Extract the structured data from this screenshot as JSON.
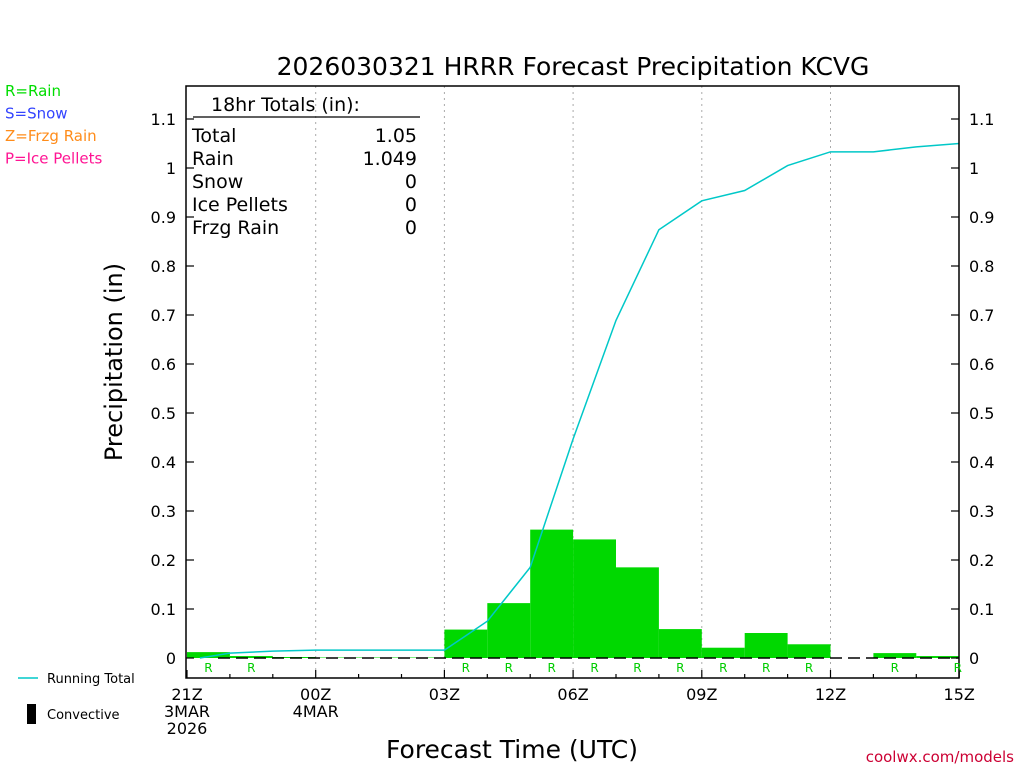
{
  "chart_data": {
    "type": "bar",
    "title": "2026030321 HRRR Forecast Precipitation KCVG",
    "xlabel": "Forecast Time (UTC)",
    "ylabel": "Precipitation (in)",
    "ylim": [
      0,
      1.15
    ],
    "yticks": [
      "0",
      "0.1",
      "0.2",
      "0.3",
      "0.4",
      "0.5",
      "0.6",
      "0.7",
      "0.8",
      "0.9",
      "1",
      "1.1"
    ],
    "x_start": "21Z 3MAR 2026",
    "x_end": "15Z 4MAR 2026",
    "x_unit": "hour (UTC)",
    "xticks": [
      {
        "hour": 0,
        "lines": [
          "21Z",
          "3MAR",
          "2026"
        ]
      },
      {
        "hour": 3,
        "lines": [
          "00Z",
          "4MAR"
        ]
      },
      {
        "hour": 6,
        "lines": [
          "03Z"
        ]
      },
      {
        "hour": 9,
        "lines": [
          "06Z"
        ]
      },
      {
        "hour": 12,
        "lines": [
          "09Z"
        ]
      },
      {
        "hour": 15,
        "lines": [
          "12Z"
        ]
      },
      {
        "hour": 18,
        "lines": [
          "15Z"
        ]
      }
    ],
    "series": [
      {
        "name": "Rain",
        "color": "#00d800",
        "bars": [
          {
            "hour": 1,
            "value": 0.012
          },
          {
            "hour": 2,
            "value": 0.004
          },
          {
            "hour": 3,
            "value": 0.002
          },
          {
            "hour": 4,
            "value": 0.001
          },
          {
            "hour": 5,
            "value": 0.001
          },
          {
            "hour": 6,
            "value": 0.001
          },
          {
            "hour": 7,
            "value": 0.058
          },
          {
            "hour": 8,
            "value": 0.112
          },
          {
            "hour": 9,
            "value": 0.262
          },
          {
            "hour": 10,
            "value": 0.242
          },
          {
            "hour": 11,
            "value": 0.185
          },
          {
            "hour": 12,
            "value": 0.059
          },
          {
            "hour": 13,
            "value": 0.021
          },
          {
            "hour": 14,
            "value": 0.051
          },
          {
            "hour": 15,
            "value": 0.028
          },
          {
            "hour": 16,
            "value": 0.0
          },
          {
            "hour": 17,
            "value": 0.01
          },
          {
            "hour": 18,
            "value": 0.004
          }
        ]
      },
      {
        "name": "Running Total",
        "color": "#00c8c8",
        "type": "line",
        "points": [
          {
            "hour": 0.3,
            "value": 0.0
          },
          {
            "hour": 1,
            "value": 0.01
          },
          {
            "hour": 2,
            "value": 0.014
          },
          {
            "hour": 3,
            "value": 0.016
          },
          {
            "hour": 4,
            "value": 0.016
          },
          {
            "hour": 5,
            "value": 0.016
          },
          {
            "hour": 6,
            "value": 0.016
          },
          {
            "hour": 7,
            "value": 0.075
          },
          {
            "hour": 8,
            "value": 0.185
          },
          {
            "hour": 9,
            "value": 0.447
          },
          {
            "hour": 10,
            "value": 0.689
          },
          {
            "hour": 11,
            "value": 0.874
          },
          {
            "hour": 12,
            "value": 0.933
          },
          {
            "hour": 13,
            "value": 0.954
          },
          {
            "hour": 14,
            "value": 1.005
          },
          {
            "hour": 15,
            "value": 1.033
          },
          {
            "hour": 16,
            "value": 1.033
          },
          {
            "hour": 17,
            "value": 1.043
          },
          {
            "hour": 18,
            "value": 1.05
          }
        ]
      }
    ],
    "ptype_markers": [
      {
        "hour": 1,
        "label": "R"
      },
      {
        "hour": 2,
        "label": "R"
      },
      {
        "hour": 7,
        "label": "R"
      },
      {
        "hour": 8,
        "label": "R"
      },
      {
        "hour": 9,
        "label": "R"
      },
      {
        "hour": 10,
        "label": "R"
      },
      {
        "hour": 11,
        "label": "R"
      },
      {
        "hour": 12,
        "label": "R"
      },
      {
        "hour": 13,
        "label": "R"
      },
      {
        "hour": 14,
        "label": "R"
      },
      {
        "hour": 15,
        "label": "R"
      },
      {
        "hour": 17,
        "label": "R"
      },
      {
        "hour": 18,
        "label": "R"
      }
    ],
    "grid": "vertical dotted at 00Z, 03Z, 06Z, 09Z, 12Z",
    "totals_box": {
      "heading": "18hr Totals (in):",
      "rows": [
        {
          "label": "Total",
          "value": "1.05"
        },
        {
          "label": "Rain",
          "value": "1.049"
        },
        {
          "label": "Snow",
          "value": "0"
        },
        {
          "label": "Ice Pellets",
          "value": "0"
        },
        {
          "label": "Frzg Rain",
          "value": "0"
        }
      ]
    },
    "ptype_legend": [
      {
        "label": "R=Rain",
        "color": "#00dd00"
      },
      {
        "label": "S=Snow",
        "color": "#3344ff"
      },
      {
        "label": "Z=Frzg Rain",
        "color": "#ff8c1a"
      },
      {
        "label": "P=Ice Pellets",
        "color": "#ff1493"
      }
    ],
    "bottom_legend": [
      {
        "label": "Running Total",
        "symbol": "line",
        "color": "#00c8c8"
      },
      {
        "label": "Convective",
        "symbol": "bar",
        "color": "#000000"
      }
    ],
    "credit": "coolwx.com/models"
  }
}
